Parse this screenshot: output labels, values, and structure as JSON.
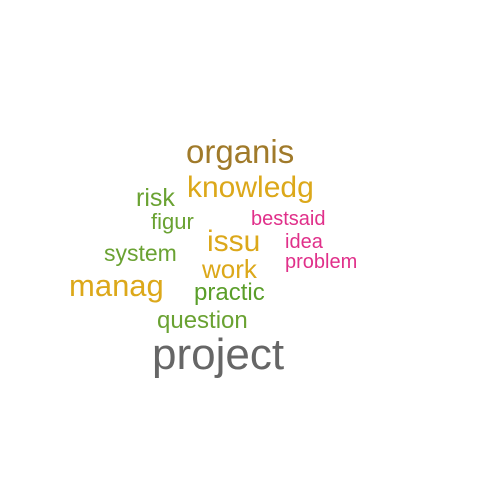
{
  "words": {
    "organis": {
      "text": "organis",
      "color": "#a07a2a"
    },
    "knowledg": {
      "text": "knowledg",
      "color": "#dca81a"
    },
    "risk": {
      "text": "risk",
      "color": "#6aa232"
    },
    "figur": {
      "text": "figur",
      "color": "#6aa232"
    },
    "bestsaid": {
      "text": "bestsaid",
      "color": "#e0308a"
    },
    "issu": {
      "text": "issu",
      "color": "#dca81a"
    },
    "idea": {
      "text": "idea",
      "color": "#e0308a"
    },
    "system": {
      "text": "system",
      "color": "#6aa232"
    },
    "work": {
      "text": "work",
      "color": "#dca81a"
    },
    "problem": {
      "text": "problem",
      "color": "#e0308a"
    },
    "manag": {
      "text": "manag",
      "color": "#dca81a"
    },
    "practic": {
      "text": "practic",
      "color": "#5a9e2a"
    },
    "question": {
      "text": "question",
      "color": "#6aa232"
    },
    "project": {
      "text": "project",
      "color": "#666666"
    }
  }
}
